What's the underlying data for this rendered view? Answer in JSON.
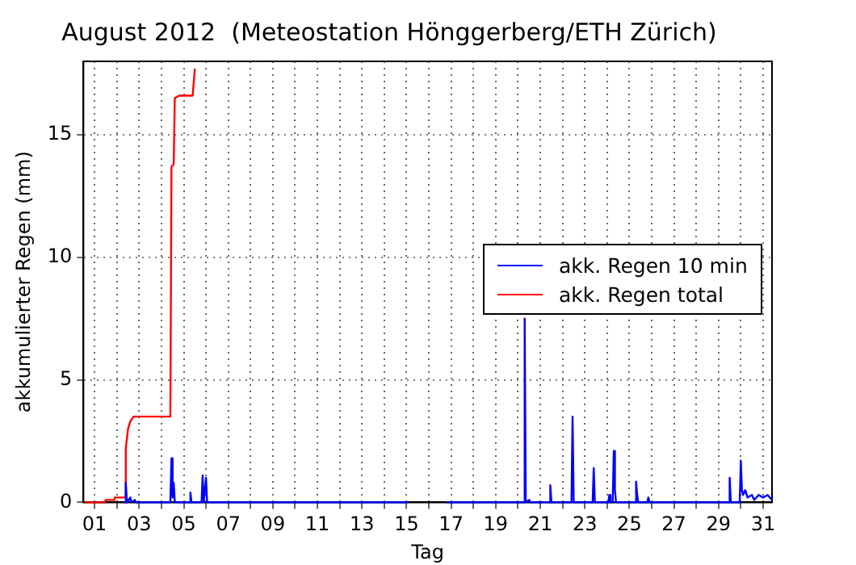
{
  "chart_data": {
    "type": "line",
    "title": "August 2012  (Meteostation Hönggerberg/ETH Zürich)",
    "xlabel": "Tag",
    "ylabel": "akkumulierter Regen (mm)",
    "xlim": [
      0.5,
      31.4
    ],
    "ylim": [
      0,
      18
    ],
    "xticks": [
      {
        "value": 1,
        "label": "01"
      },
      {
        "value": 2,
        "label": null
      },
      {
        "value": 3,
        "label": "03"
      },
      {
        "value": 4,
        "label": null
      },
      {
        "value": 5,
        "label": "05"
      },
      {
        "value": 6,
        "label": null
      },
      {
        "value": 7,
        "label": "07"
      },
      {
        "value": 8,
        "label": null
      },
      {
        "value": 9,
        "label": "09"
      },
      {
        "value": 10,
        "label": null
      },
      {
        "value": 11,
        "label": "11"
      },
      {
        "value": 12,
        "label": null
      },
      {
        "value": 13,
        "label": "13"
      },
      {
        "value": 14,
        "label": null
      },
      {
        "value": 15,
        "label": "15"
      },
      {
        "value": 16,
        "label": null
      },
      {
        "value": 17,
        "label": "17"
      },
      {
        "value": 18,
        "label": null
      },
      {
        "value": 19,
        "label": "19"
      },
      {
        "value": 20,
        "label": null
      },
      {
        "value": 21,
        "label": "21"
      },
      {
        "value": 22,
        "label": null
      },
      {
        "value": 23,
        "label": "23"
      },
      {
        "value": 24,
        "label": null
      },
      {
        "value": 25,
        "label": "25"
      },
      {
        "value": 26,
        "label": null
      },
      {
        "value": 27,
        "label": "27"
      },
      {
        "value": 28,
        "label": null
      },
      {
        "value": 29,
        "label": "29"
      },
      {
        "value": 30,
        "label": null
      },
      {
        "value": 31,
        "label": "31"
      }
    ],
    "yticks": [
      0,
      5,
      10,
      15
    ],
    "grid": true,
    "legend": "right",
    "marker": "none",
    "series": [
      {
        "name": "akk. Regen 10 min",
        "color": "#0000ff",
        "x": [
          2.3,
          2.35,
          2.4,
          2.45,
          2.6,
          2.65,
          2.8,
          2.85,
          3.0,
          4.4,
          4.45,
          4.5,
          4.55,
          4.6,
          4.65,
          5.25,
          5.3,
          5.35,
          5.8,
          5.85,
          5.9,
          5.95,
          6.0,
          6.05,
          15.05,
          15.1,
          16.8,
          20.25,
          20.3,
          20.35,
          20.5,
          20.55,
          21.4,
          21.45,
          21.5,
          22.4,
          22.45,
          22.5,
          23.35,
          23.4,
          23.45,
          24.05,
          24.1,
          24.15,
          24.25,
          24.3,
          24.35,
          24.4,
          25.25,
          25.3,
          25.35,
          25.4,
          25.8,
          25.85,
          25.9,
          29.45,
          29.5,
          29.55,
          29.95,
          30.0,
          30.05,
          30.1,
          30.2,
          30.3,
          30.5,
          30.6,
          30.8,
          31.0,
          31.2,
          31.4
        ],
        "values": [
          0,
          0,
          0.8,
          0,
          0.2,
          0,
          0.1,
          0,
          0,
          0,
          1.8,
          0.2,
          0.8,
          0,
          0,
          0,
          0.4,
          0,
          0,
          1.1,
          0,
          0,
          1.0,
          0,
          0,
          null,
          0,
          0,
          7.5,
          0,
          0.1,
          0,
          0,
          0.7,
          0,
          0,
          3.5,
          0,
          0,
          1.4,
          0,
          0,
          0.3,
          0,
          0,
          2.1,
          0.5,
          0,
          0,
          0.85,
          0.3,
          0,
          0,
          0.2,
          0,
          0,
          1.0,
          0,
          0,
          1.7,
          0.5,
          0.3,
          0.5,
          0.2,
          0.3,
          0.1,
          0.3,
          0.2,
          0.3,
          0.1
        ]
      },
      {
        "name": "akk. Regen total",
        "color": "#ff0000",
        "x": [
          0.55,
          1.45,
          1.5,
          1.85,
          1.9,
          2.35,
          2.4,
          2.5,
          2.6,
          2.75,
          4.4,
          4.45,
          4.55,
          4.6,
          4.8,
          5.4,
          5.5
        ],
        "values": [
          0,
          0,
          0.1,
          0.1,
          0.2,
          0.2,
          2.2,
          3.0,
          3.3,
          3.5,
          3.5,
          13.7,
          13.8,
          16.5,
          16.6,
          16.6,
          17.7
        ]
      }
    ]
  }
}
